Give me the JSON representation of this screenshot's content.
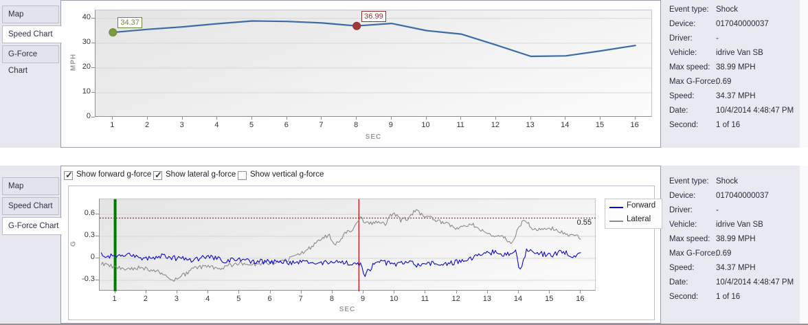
{
  "tabs": {
    "speed_panel": [
      {
        "label": "Map",
        "selected": false
      },
      {
        "label": "Speed Chart",
        "selected": true
      },
      {
        "label": "G-Force Chart",
        "selected": false
      }
    ],
    "gforce_panel": [
      {
        "label": "Map",
        "selected": false
      },
      {
        "label": "Speed Chart",
        "selected": false
      },
      {
        "label": "G-Force Chart",
        "selected": true
      }
    ]
  },
  "info": {
    "rows": [
      {
        "label": "Event type:",
        "value": "Shock"
      },
      {
        "label": "Device:",
        "value": "017040000037"
      },
      {
        "label": "Driver:",
        "value": "-"
      },
      {
        "label": "Vehicle:",
        "value": "idrive Van SB"
      },
      {
        "label": "Max speed:",
        "value": "38.99 MPH"
      },
      {
        "label": "Max G-Force:",
        "value": "0.69"
      },
      {
        "label": "Speed:",
        "value": "34.37 MPH"
      },
      {
        "label": "Date:",
        "value": "10/4/2014 4:48:47 PM"
      },
      {
        "label": "Second:",
        "value": "1 of 16"
      }
    ]
  },
  "gforce_controls": {
    "checkboxes": [
      {
        "label": "Show forward g-force",
        "checked": true
      },
      {
        "label": "Show lateral g-force",
        "checked": true
      },
      {
        "label": "Show vertical g-force",
        "checked": false
      }
    ]
  },
  "chart_data": [
    {
      "id": "speed",
      "type": "line",
      "xlabel": "SEC",
      "ylabel": "MPH",
      "x": [
        1,
        2,
        3,
        4,
        5,
        6,
        7,
        8,
        9,
        10,
        11,
        12,
        13,
        14,
        15,
        16
      ],
      "values": [
        34.37,
        35.6,
        36.6,
        37.9,
        38.99,
        38.8,
        38.2,
        36.99,
        38.0,
        35.1,
        33.7,
        29.3,
        24.7,
        24.9,
        26.9,
        29.1
      ],
      "yticks": [
        0,
        10,
        20,
        30,
        40
      ],
      "xlim": [
        0.5,
        16.5
      ],
      "ylim": [
        0,
        43.3
      ],
      "line_color": "#3b6ca6",
      "grid": true,
      "annotations": [
        {
          "x": 1,
          "value": 34.37,
          "label": "34.37",
          "color": "#6f8637",
          "fill": "#7d9a3d"
        },
        {
          "x": 8,
          "value": 36.99,
          "label": "36.99",
          "color": "#8c3232",
          "fill": "#a03a3a"
        }
      ]
    },
    {
      "id": "gforce",
      "type": "line",
      "xlabel": "SEC",
      "ylabel": "G",
      "xticks": [
        1,
        2,
        3,
        4,
        5,
        6,
        7,
        8,
        9,
        10,
        11,
        12,
        13,
        14,
        15,
        16
      ],
      "yticks": [
        -0.3,
        0,
        0.3,
        0.6
      ],
      "xlim": [
        0.5,
        16.5
      ],
      "ylim": [
        -0.45,
        0.806
      ],
      "grid": true,
      "legend_position": "top-right",
      "threshold": {
        "value": 0.55,
        "label": "0.55",
        "color": "#d40000"
      },
      "vlines": [
        {
          "x": 1,
          "color": "#007a00",
          "width": 4
        },
        {
          "x": 8.85,
          "color": "#cc0000",
          "width": 1.2
        }
      ],
      "series": [
        {
          "name": "Forward",
          "color": "#0909cc",
          "noise": 0.035,
          "seed": 4,
          "trend": [
            [
              0.55,
              0.05
            ],
            [
              1,
              0.02
            ],
            [
              1.5,
              0.04
            ],
            [
              2,
              0
            ],
            [
              2.5,
              0.03
            ],
            [
              3,
              0
            ],
            [
              3.5,
              -0.02
            ],
            [
              4,
              0.02
            ],
            [
              4.5,
              -0.03
            ],
            [
              5,
              -0.02
            ],
            [
              5.5,
              -0.05
            ],
            [
              6,
              -0.04
            ],
            [
              6.5,
              -0.06
            ],
            [
              7,
              -0.05
            ],
            [
              7.5,
              -0.07
            ],
            [
              8,
              -0.05
            ],
            [
              8.5,
              -0.06
            ],
            [
              8.9,
              -0.08
            ],
            [
              9.05,
              -0.22
            ],
            [
              9.3,
              -0.1
            ],
            [
              9.6,
              -0.05
            ],
            [
              10,
              -0.09
            ],
            [
              10.4,
              -0.04
            ],
            [
              10.8,
              -0.11
            ],
            [
              11.2,
              -0.06
            ],
            [
              11.6,
              -0.09
            ],
            [
              12,
              -0.05
            ],
            [
              12.4,
              -0.01
            ],
            [
              12.8,
              0.04
            ],
            [
              13.2,
              0.09
            ],
            [
              13.6,
              0.05
            ],
            [
              13.9,
              0.08
            ],
            [
              14.05,
              -0.18
            ],
            [
              14.25,
              0.1
            ],
            [
              14.6,
              0.07
            ],
            [
              15,
              0.04
            ],
            [
              15.4,
              0.1
            ],
            [
              15.7,
              0.03
            ],
            [
              16,
              0.08
            ]
          ]
        },
        {
          "name": "Lateral",
          "color": "#8a8a8a",
          "noise": 0.03,
          "seed": 9,
          "trend": [
            [
              0.55,
              -0.07
            ],
            [
              1,
              -0.12
            ],
            [
              1.4,
              -0.16
            ],
            [
              1.8,
              -0.12
            ],
            [
              2.2,
              -0.16
            ],
            [
              2.5,
              -0.2
            ],
            [
              2.8,
              -0.3
            ],
            [
              3,
              -0.29
            ],
            [
              3.3,
              -0.2
            ],
            [
              3.6,
              -0.13
            ],
            [
              4,
              -0.11
            ],
            [
              4.4,
              -0.14
            ],
            [
              4.8,
              -0.08
            ],
            [
              5.2,
              -0.06
            ],
            [
              5.6,
              -0.09
            ],
            [
              6,
              -0.07
            ],
            [
              6.4,
              -0.04
            ],
            [
              6.8,
              0.02
            ],
            [
              7.2,
              0.12
            ],
            [
              7.6,
              0.26
            ],
            [
              7.9,
              0.32
            ],
            [
              8.1,
              0.18
            ],
            [
              8.4,
              0.33
            ],
            [
              8.7,
              0.42
            ],
            [
              8.9,
              0.56
            ],
            [
              9.1,
              0.47
            ],
            [
              9.4,
              0.5
            ],
            [
              9.7,
              0.46
            ],
            [
              9.95,
              0.63
            ],
            [
              10.2,
              0.52
            ],
            [
              10.45,
              0.55
            ],
            [
              10.7,
              0.66
            ],
            [
              10.95,
              0.57
            ],
            [
              11.2,
              0.55
            ],
            [
              11.5,
              0.5
            ],
            [
              11.8,
              0.44
            ],
            [
              12.1,
              0.41
            ],
            [
              12.45,
              0.47
            ],
            [
              12.7,
              0.42
            ],
            [
              13,
              0.33
            ],
            [
              13.3,
              0.3
            ],
            [
              13.6,
              0.27
            ],
            [
              13.75,
              0.18
            ],
            [
              13.9,
              0.33
            ],
            [
              14.15,
              0.54
            ],
            [
              14.4,
              0.42
            ],
            [
              14.7,
              0.38
            ],
            [
              15,
              0.42
            ],
            [
              15.3,
              0.36
            ],
            [
              15.6,
              0.32
            ],
            [
              15.8,
              0.33
            ],
            [
              16,
              0.26
            ]
          ]
        }
      ]
    }
  ]
}
